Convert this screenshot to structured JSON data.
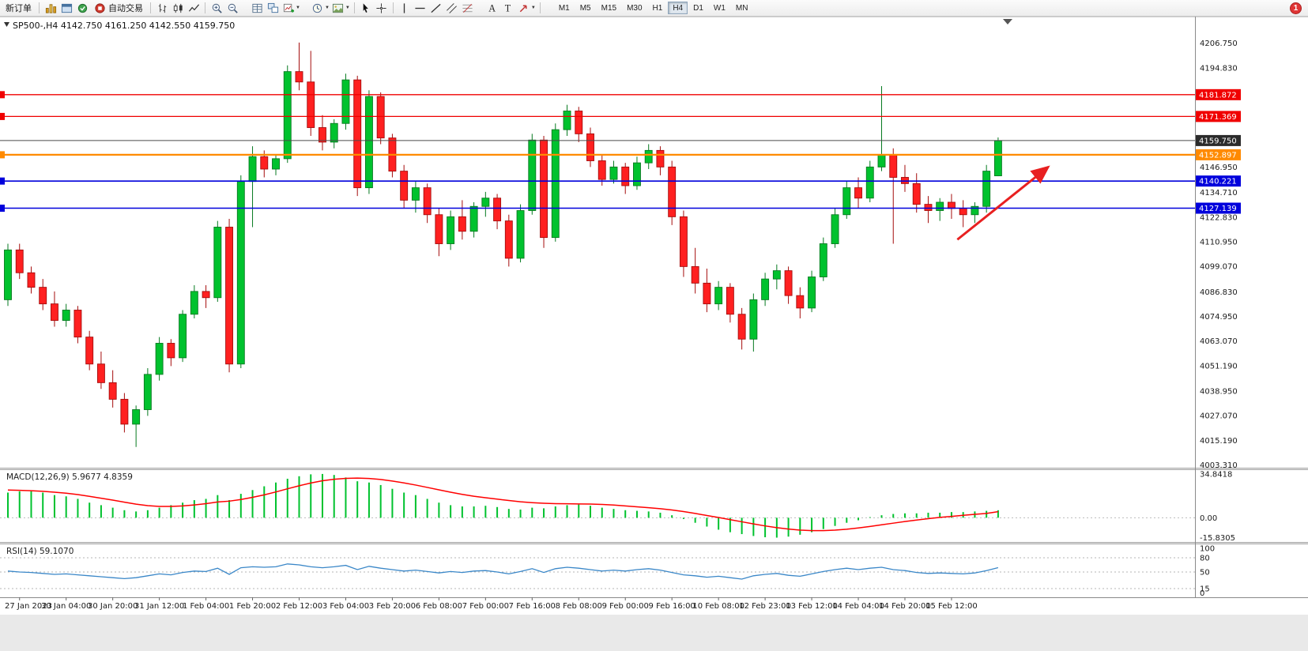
{
  "toolbar": {
    "new_order_label": "新订单",
    "autotrading_label": "自动交易",
    "timeframes": [
      "M1",
      "M5",
      "M15",
      "M30",
      "H1",
      "H4",
      "D1",
      "W1",
      "MN"
    ],
    "active_timeframe": "H4",
    "notification_count": "1",
    "icon_names": [
      "market-watch-icon",
      "navigator-icon",
      "terminal-icon",
      "autotrading-icon",
      "ohlc-bars-icon",
      "candlestick-chart-icon",
      "line-chart-icon",
      "zoom-in-icon",
      "zoom-out-icon",
      "grid-icon",
      "tile-windows-icon",
      "new-chart-icon",
      "periods-clock-icon",
      "templates-icon",
      "cursor-icon",
      "crosshair-icon",
      "vertical-line-icon",
      "horizontal-line-icon",
      "trendline-icon",
      "channel-icon",
      "fibonacci-icon",
      "text-icon",
      "text-label-icon",
      "arrows-icon",
      "chevron-down-icon",
      "notification-badge"
    ]
  },
  "chart_data": {
    "type": "candlestick",
    "symbol_period": "SP500-,H4",
    "ohlc_text": "4142.750 4161.250 4142.550 4159.750",
    "price_axis": {
      "ylim": [
        4002,
        4210
      ],
      "labels": [
        "4206.750",
        "4194.830",
        "4146.950",
        "4134.710",
        "4122.830",
        "4110.950",
        "4099.070",
        "4086.830",
        "4074.950",
        "4063.070",
        "4051.190",
        "4038.950",
        "4027.070",
        "4015.190",
        "4003.310"
      ]
    },
    "hlines": [
      {
        "label": "4181.872",
        "price": 4181.872,
        "color": "#f00000",
        "width": 1.3
      },
      {
        "label": "4171.369",
        "price": 4171.369,
        "color": "#f00000",
        "width": 1.3
      },
      {
        "label": "4152.897",
        "price": 4152.897,
        "color": "#ff8a00",
        "width": 2.2
      },
      {
        "label": "4140.221",
        "price": 4140.221,
        "color": "#0000dc",
        "width": 1.6
      },
      {
        "label": "4127.139",
        "price": 4127.139,
        "color": "#0000dc",
        "width": 1.6
      }
    ],
    "current_price": {
      "label": "4159.750",
      "price": 4159.75,
      "color": "#2b2b2b"
    },
    "candles": [
      [
        4083,
        4110,
        4080,
        4107
      ],
      [
        4107,
        4110,
        4093,
        4096
      ],
      [
        4096,
        4099,
        4086,
        4089
      ],
      [
        4089,
        4093,
        4078,
        4081
      ],
      [
        4081,
        4087,
        4070,
        4073
      ],
      [
        4073,
        4081,
        4070,
        4078
      ],
      [
        4078,
        4080,
        4062,
        4065
      ],
      [
        4065,
        4068,
        4049,
        4052
      ],
      [
        4052,
        4058,
        4040,
        4043
      ],
      [
        4043,
        4049,
        4031,
        4035
      ],
      [
        4035,
        4038,
        4019,
        4023
      ],
      [
        4023,
        4032,
        4012,
        4030
      ],
      [
        4030,
        4050,
        4027,
        4047
      ],
      [
        4047,
        4065,
        4044,
        4062
      ],
      [
        4062,
        4064,
        4051,
        4055
      ],
      [
        4055,
        4078,
        4053,
        4076
      ],
      [
        4076,
        4090,
        4074,
        4087
      ],
      [
        4087,
        4090,
        4079,
        4084
      ],
      [
        4084,
        4121,
        4082,
        4118
      ],
      [
        4118,
        4122,
        4048,
        4052
      ],
      [
        4052,
        4143,
        4050,
        4140
      ],
      [
        4140,
        4157,
        4118,
        4152
      ],
      [
        4152,
        4155,
        4142,
        4146
      ],
      [
        4146,
        4153,
        4143,
        4151
      ],
      [
        4151,
        4196,
        4149,
        4193
      ],
      [
        4193,
        4207,
        4184,
        4188
      ],
      [
        4188,
        4203,
        4162,
        4166
      ],
      [
        4166,
        4172,
        4155,
        4159
      ],
      [
        4159,
        4170,
        4156,
        4168
      ],
      [
        4168,
        4192,
        4165,
        4189
      ],
      [
        4189,
        4191,
        4133,
        4137
      ],
      [
        4137,
        4184,
        4134,
        4181
      ],
      [
        4181,
        4183,
        4158,
        4161
      ],
      [
        4161,
        4163,
        4142,
        4145
      ],
      [
        4145,
        4148,
        4127,
        4131
      ],
      [
        4131,
        4140,
        4125,
        4137
      ],
      [
        4137,
        4139,
        4120,
        4124
      ],
      [
        4124,
        4127,
        4104,
        4110
      ],
      [
        4110,
        4126,
        4107,
        4123
      ],
      [
        4123,
        4131,
        4112,
        4116
      ],
      [
        4116,
        4130,
        4113,
        4128
      ],
      [
        4128,
        4135,
        4123,
        4132
      ],
      [
        4132,
        4134,
        4117,
        4121
      ],
      [
        4121,
        4124,
        4099,
        4103
      ],
      [
        4103,
        4129,
        4101,
        4126
      ],
      [
        4126,
        4163,
        4124,
        4160
      ],
      [
        4160,
        4162,
        4108,
        4113
      ],
      [
        4113,
        4168,
        4111,
        4165
      ],
      [
        4165,
        4177,
        4162,
        4174
      ],
      [
        4174,
        4176,
        4159,
        4163
      ],
      [
        4163,
        4166,
        4147,
        4150
      ],
      [
        4150,
        4153,
        4138,
        4141
      ],
      [
        4141,
        4150,
        4139,
        4147
      ],
      [
        4147,
        4149,
        4134,
        4138
      ],
      [
        4138,
        4152,
        4136,
        4149
      ],
      [
        4149,
        4158,
        4146,
        4155
      ],
      [
        4155,
        4157,
        4143,
        4147
      ],
      [
        4147,
        4150,
        4119,
        4123
      ],
      [
        4123,
        4126,
        4094,
        4099
      ],
      [
        4099,
        4108,
        4086,
        4091
      ],
      [
        4091,
        4098,
        4077,
        4081
      ],
      [
        4081,
        4092,
        4078,
        4089
      ],
      [
        4089,
        4091,
        4072,
        4076
      ],
      [
        4076,
        4079,
        4059,
        4064
      ],
      [
        4064,
        4086,
        4058,
        4083
      ],
      [
        4083,
        4096,
        4080,
        4093
      ],
      [
        4093,
        4100,
        4088,
        4097
      ],
      [
        4097,
        4099,
        4081,
        4085
      ],
      [
        4085,
        4089,
        4074,
        4079
      ],
      [
        4079,
        4097,
        4077,
        4094
      ],
      [
        4094,
        4113,
        4092,
        4110
      ],
      [
        4110,
        4127,
        4108,
        4124
      ],
      [
        4124,
        4140,
        4122,
        4137
      ],
      [
        4137,
        4142,
        4127,
        4132
      ],
      [
        4132,
        4150,
        4130,
        4147
      ],
      [
        4147,
        4186,
        4145,
        4153
      ],
      [
        4153,
        4156,
        4110,
        4142
      ],
      [
        4142,
        4148,
        4135,
        4139
      ],
      [
        4139,
        4144,
        4125,
        4129
      ],
      [
        4129,
        4133,
        4120,
        4126
      ],
      [
        4126,
        4132,
        4121,
        4130
      ],
      [
        4130,
        4134,
        4122,
        4127
      ],
      [
        4127,
        4131,
        4118,
        4124
      ],
      [
        4124,
        4130,
        4120,
        4128
      ],
      [
        4128,
        4148,
        4125,
        4145
      ],
      [
        4142.75,
        4161.25,
        4142.55,
        4159.75
      ]
    ],
    "time_labels": [
      {
        "i": 1,
        "t": "27 Jan 2023"
      },
      {
        "i": 5,
        "t": "30 Jan 04:00"
      },
      {
        "i": 9,
        "t": "30 Jan 20:00"
      },
      {
        "i": 13,
        "t": "31 Jan 12:00"
      },
      {
        "i": 17,
        "t": "1 Feb 04:00"
      },
      {
        "i": 21,
        "t": "1 Feb 20:00"
      },
      {
        "i": 25,
        "t": "2 Feb 12:00"
      },
      {
        "i": 29,
        "t": "3 Feb 04:00"
      },
      {
        "i": 33,
        "t": "3 Feb 20:00"
      },
      {
        "i": 37,
        "t": "6 Feb 08:00"
      },
      {
        "i": 41,
        "t": "7 Feb 00:00"
      },
      {
        "i": 45,
        "t": "7 Feb 16:00"
      },
      {
        "i": 49,
        "t": "8 Feb 08:00"
      },
      {
        "i": 53,
        "t": "9 Feb 00:00"
      },
      {
        "i": 57,
        "t": "9 Feb 16:00"
      },
      {
        "i": 61,
        "t": "10 Feb 08:00"
      },
      {
        "i": 65,
        "t": "12 Feb 23:00"
      },
      {
        "i": 69,
        "t": "13 Feb 12:00"
      },
      {
        "i": 73,
        "t": "14 Feb 04:00"
      },
      {
        "i": 77,
        "t": "14 Feb 20:00"
      },
      {
        "i": 81,
        "t": "15 Feb 12:00"
      }
    ],
    "macd": {
      "title": "MACD(12,26,9)",
      "values_text": "5.9677 4.8359",
      "ylim": [
        -18,
        36
      ],
      "scale_labels": [
        "34.8418",
        "0.00",
        "-15.8305"
      ],
      "histogram": [
        20,
        21,
        21,
        20,
        18,
        17,
        15,
        12,
        10,
        8,
        6,
        5,
        6,
        8,
        10,
        12,
        14,
        15,
        18,
        14,
        19,
        22,
        25,
        28,
        31,
        33,
        34.5,
        34.8,
        34,
        32,
        29,
        28,
        26,
        23,
        20,
        18,
        15,
        12,
        10,
        9,
        9,
        9.5,
        8.5,
        7,
        6.5,
        8,
        7.5,
        9,
        10,
        10.5,
        9.5,
        8,
        7,
        6,
        5.5,
        5,
        4,
        2,
        -1,
        -4,
        -7,
        -9.5,
        -11.5,
        -13,
        -14.5,
        -15.5,
        -15.8,
        -15,
        -13.5,
        -11.5,
        -9,
        -6.5,
        -4,
        -2,
        0.5,
        2,
        3,
        3.5,
        3.5,
        4,
        4,
        4.5,
        4.5,
        5,
        5.5,
        5.97
      ],
      "signal": [
        22,
        21.8,
        21.5,
        21,
        20.3,
        19.5,
        18.4,
        17,
        15.5,
        14,
        12.4,
        10.8,
        9.6,
        9,
        9,
        9.4,
        10.2,
        11.2,
        12.5,
        13.2,
        14.5,
        16.2,
        18.2,
        20.5,
        23,
        25.4,
        27.6,
        29.4,
        30.6,
        31.3,
        31.5,
        31.2,
        30.4,
        29.2,
        27.7,
        26,
        24.1,
        22.2,
        20.3,
        18.6,
        17.1,
        15.9,
        14.8,
        13.7,
        12.7,
        12,
        11.5,
        11.2,
        11.1,
        11,
        10.9,
        10.6,
        10.1,
        9.4,
        8.7,
        8,
        7.2,
        6.2,
        4.9,
        3.4,
        1.8,
        0.2,
        -1.5,
        -3.2,
        -4.9,
        -6.5,
        -7.9,
        -9,
        -9.8,
        -10.2,
        -10.2,
        -9.8,
        -9.1,
        -8.1,
        -6.9,
        -5.6,
        -4.3,
        -3,
        -1.8,
        -0.7,
        0.3,
        1.1,
        1.9,
        2.7,
        3.4,
        4.84
      ]
    },
    "rsi": {
      "title": "RSI(14)",
      "value_text": "59.1070",
      "ylim": [
        0,
        100
      ],
      "levels": [
        80,
        50,
        15
      ],
      "scale_labels": [
        "100",
        "80",
        "50",
        "15",
        "0"
      ],
      "series": [
        52,
        50,
        49,
        47,
        45,
        46,
        44,
        42,
        40,
        38,
        36,
        38,
        42,
        46,
        44,
        49,
        52,
        51,
        58,
        45,
        59,
        61,
        60,
        61,
        67,
        65,
        61,
        59,
        61,
        64,
        55,
        62,
        58,
        55,
        52,
        54,
        51,
        48,
        51,
        49,
        52,
        53,
        50,
        46,
        51,
        57,
        49,
        57,
        60,
        58,
        55,
        52,
        54,
        52,
        55,
        57,
        54,
        49,
        44,
        42,
        39,
        41,
        38,
        35,
        42,
        45,
        47,
        43,
        41,
        46,
        51,
        55,
        58,
        55,
        58,
        60,
        55,
        53,
        49,
        47,
        48,
        47,
        46,
        48,
        53,
        59.1
      ]
    },
    "trend_arrow": {
      "from_index": 81.5,
      "from_price": 4112,
      "to_index": 89.3,
      "to_price": 4147,
      "color": "#e82020"
    }
  }
}
